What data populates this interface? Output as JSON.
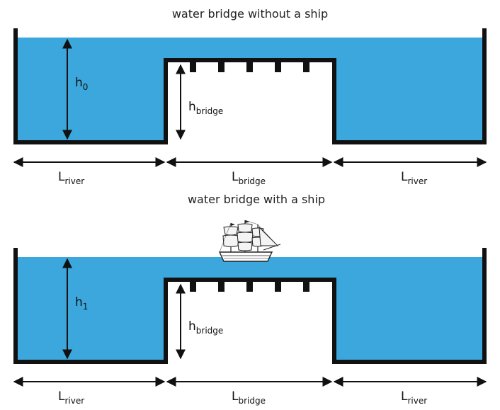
{
  "colors": {
    "water": "#3ba7dd",
    "structure": "#111111",
    "background": "#ffffff"
  },
  "panel_top": {
    "title": "water bridge without a ship",
    "level": {
      "base": "h",
      "sub": "0"
    },
    "bridge_height": {
      "base": "h",
      "sub": "bridge"
    },
    "left_length": {
      "base": "L",
      "sub": "river"
    },
    "bridge_length": {
      "base": "L",
      "sub": "bridge"
    },
    "right_length": {
      "base": "L",
      "sub": "river"
    }
  },
  "panel_bottom": {
    "title": "water bridge with a ship",
    "level": {
      "base": "h",
      "sub": "1"
    },
    "bridge_height": {
      "base": "h",
      "sub": "bridge"
    },
    "left_length": {
      "base": "L",
      "sub": "river"
    },
    "bridge_length": {
      "base": "L",
      "sub": "bridge"
    },
    "right_length": {
      "base": "L",
      "sub": "river"
    },
    "ship": {
      "icon": "sailing-ship-icon"
    }
  }
}
